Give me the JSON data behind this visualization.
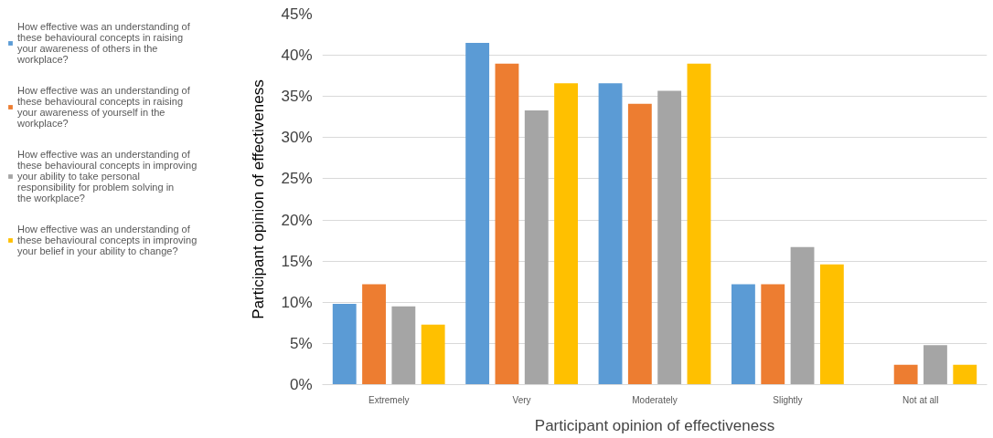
{
  "chart_data": {
    "type": "bar",
    "xlabel": "Participant opinion of effectiveness",
    "ylabel": "Participant opinion of effectiveness",
    "categories": [
      "Extremely",
      "Very",
      "Moderately",
      "Slightly",
      "Not at all"
    ],
    "series": [
      {
        "name": "How effective was an understanding of these behavioural concepts in raising your awareness of others in the workplace?",
        "color": "#5b9bd5",
        "values": [
          9.8,
          41.5,
          36.6,
          12.2,
          0
        ]
      },
      {
        "name": "How effective was an understanding of these behavioural concepts in raising your awareness of yourself in the workplace?",
        "color": "#ed7d31",
        "values": [
          12.2,
          39.0,
          34.1,
          12.2,
          2.4
        ]
      },
      {
        "name": "How effective was an understanding of these behavioural concepts in improving your ability to take personal responsibility for problem solving in the workplace?",
        "color": "#a5a5a5",
        "values": [
          9.5,
          33.3,
          35.7,
          16.7,
          4.8
        ]
      },
      {
        "name": "How effective was an understanding of these behavioural concepts in improving your belief in your ability to change?",
        "color": "#ffc000",
        "values": [
          7.3,
          36.6,
          39.0,
          14.6,
          2.4
        ]
      }
    ],
    "ylim": [
      0,
      45
    ],
    "yticks": [
      {
        "value": 0,
        "label": "0%"
      },
      {
        "value": 5,
        "label": "5%"
      },
      {
        "value": 10,
        "label": "10%"
      },
      {
        "value": 15,
        "label": "15%"
      },
      {
        "value": 20,
        "label": "20%"
      },
      {
        "value": 25,
        "label": "25%"
      },
      {
        "value": 30,
        "label": "30%"
      },
      {
        "value": 35,
        "label": "35%"
      },
      {
        "value": 40,
        "label": "40%"
      },
      {
        "value": 45,
        "label": "45%"
      }
    ],
    "grid": "y",
    "legend": "left"
  }
}
